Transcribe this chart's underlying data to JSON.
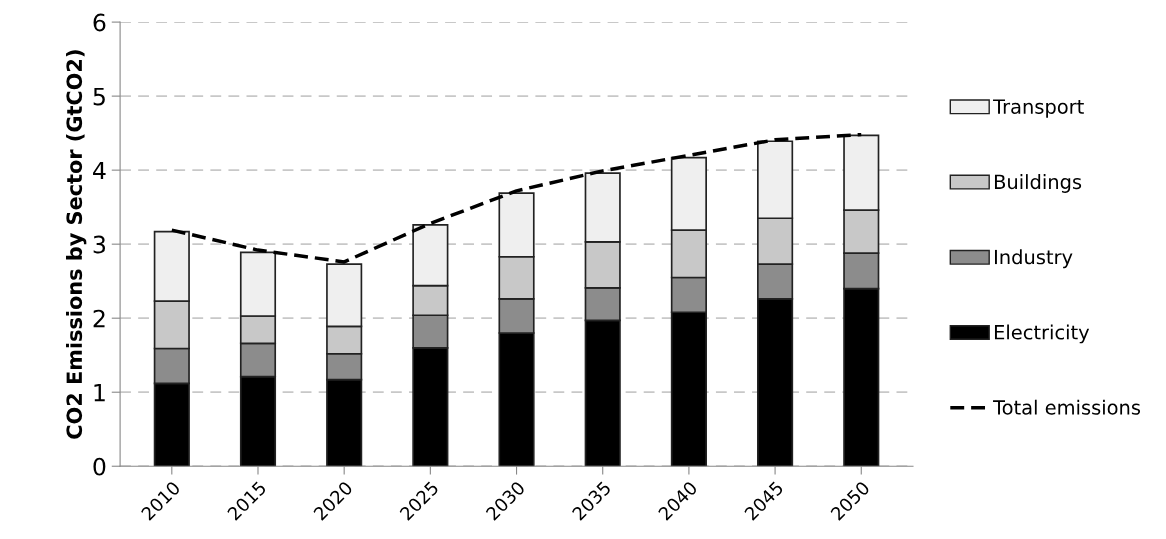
{
  "chart_data": {
    "type": "bar",
    "stacked": true,
    "ylabel": "CO2 Emissions by Sector (GtCO2)",
    "categories": [
      "2010",
      "2015",
      "2020",
      "2025",
      "2030",
      "2035",
      "2040",
      "2045",
      "2050"
    ],
    "series": [
      {
        "name": "Electricity",
        "color": "#000000",
        "values": [
          1.12,
          1.21,
          1.17,
          1.6,
          1.8,
          1.97,
          2.08,
          2.26,
          2.4
        ]
      },
      {
        "name": "Industry",
        "color": "#8c8c8c",
        "values": [
          0.47,
          0.45,
          0.35,
          0.44,
          0.46,
          0.44,
          0.47,
          0.47,
          0.48
        ]
      },
      {
        "name": "Buildings",
        "color": "#c8c8c8",
        "values": [
          0.64,
          0.37,
          0.37,
          0.4,
          0.57,
          0.62,
          0.64,
          0.62,
          0.58
        ]
      },
      {
        "name": "Transport",
        "color": "#efefef",
        "values": [
          0.94,
          0.86,
          0.84,
          0.82,
          0.86,
          0.93,
          0.98,
          1.04,
          1.01
        ]
      },
      {
        "name": "Total emissions",
        "type": "line",
        "color": "#000000",
        "line_style": "dashed",
        "marker": "none",
        "values": [
          3.19,
          2.92,
          2.76,
          3.28,
          3.72,
          3.99,
          4.2,
          4.41,
          4.48
        ]
      }
    ],
    "ylim": [
      0,
      6
    ],
    "yticks": [
      0,
      1,
      2,
      3,
      4,
      5,
      6
    ],
    "grid": "y",
    "legend": "right"
  }
}
